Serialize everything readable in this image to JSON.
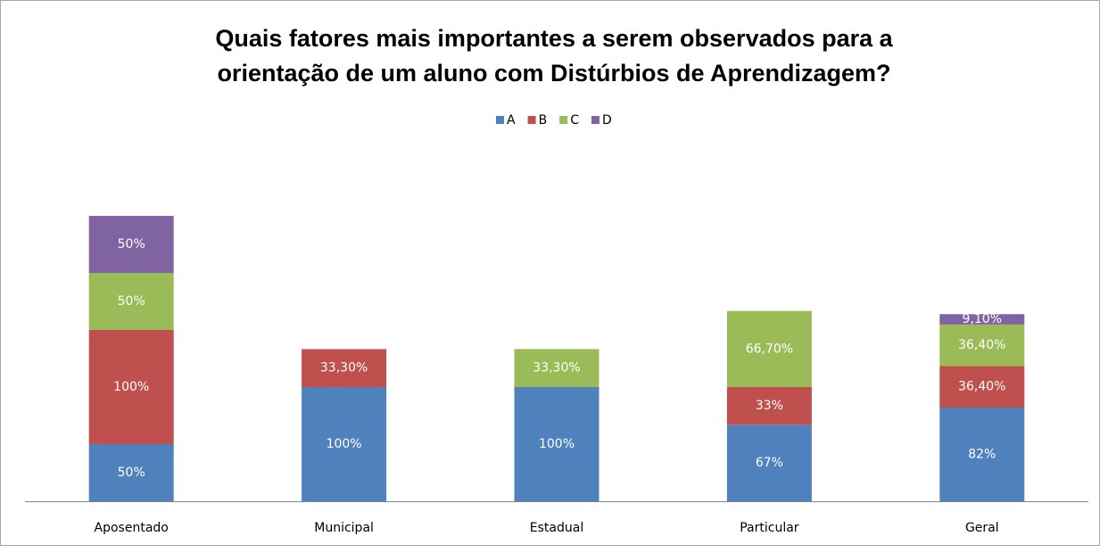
{
  "chart_data": {
    "type": "stacked_bar",
    "title": "Quais fatores mais importantes a serem observados para a orientação de um aluno com Distúrbios de Aprendizagem?",
    "categories": [
      "Aposentado",
      "Municipal",
      "Estadual",
      "Particular",
      "Geral"
    ],
    "series": [
      {
        "name": "A",
        "color": "#4f81bd",
        "values": [
          50,
          100,
          100,
          67,
          82
        ],
        "value_labels": [
          "50%",
          "100%",
          "100%",
          "67%",
          "82%"
        ]
      },
      {
        "name": "B",
        "color": "#c0504d",
        "values": [
          100,
          33.3,
          null,
          33,
          36.4
        ],
        "value_labels": [
          "100%",
          "33,30%",
          null,
          "33%",
          "36,40%"
        ]
      },
      {
        "name": "C",
        "color": "#9bbb59",
        "values": [
          50,
          null,
          33.3,
          66.7,
          36.4
        ],
        "value_labels": [
          "50%",
          null,
          "33,30%",
          "66,70%",
          "36,40%"
        ]
      },
      {
        "name": "D",
        "color": "#8064a2",
        "values": [
          50,
          null,
          null,
          null,
          9.1
        ],
        "value_labels": [
          "50%",
          null,
          null,
          null,
          "9,10%"
        ]
      }
    ],
    "ylim": [
      0,
      300
    ],
    "legend": "top"
  }
}
